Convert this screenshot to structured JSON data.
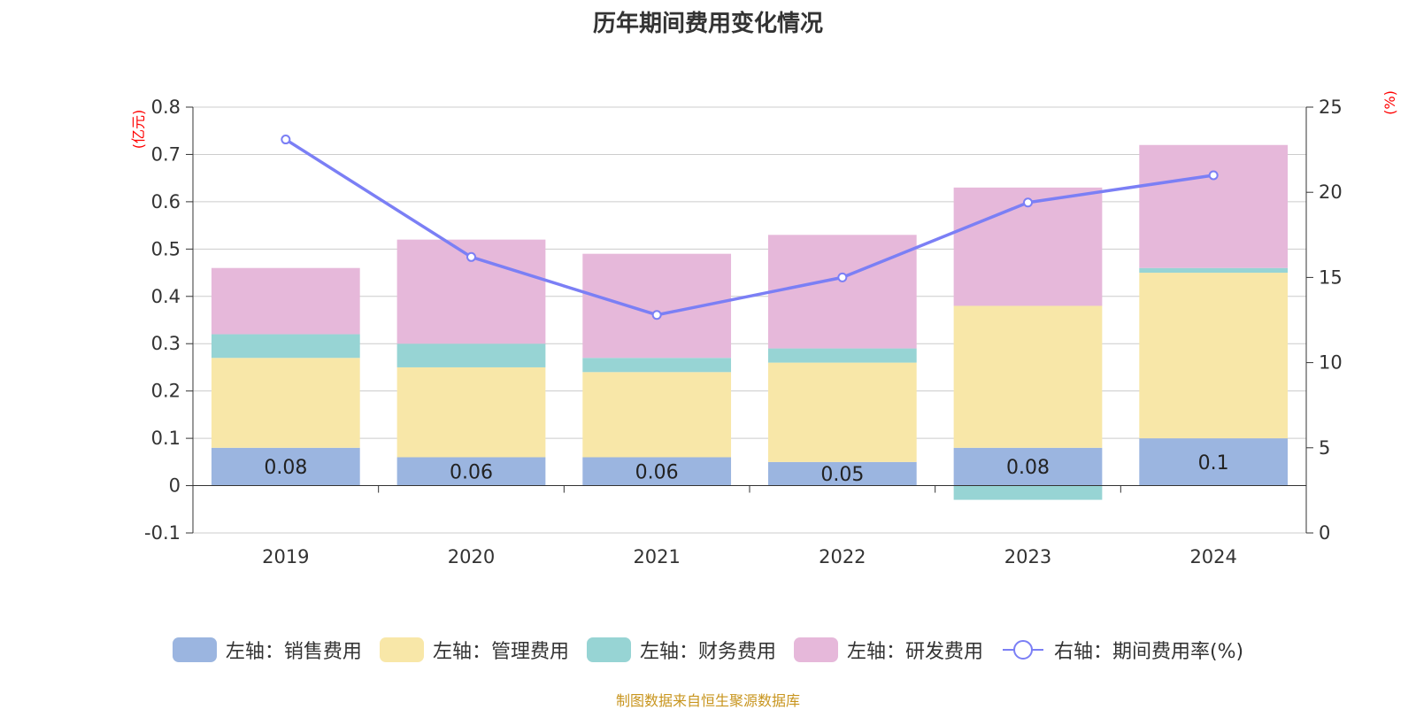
{
  "chart_data": {
    "type": "bar",
    "title": "历年期间费用变化情况",
    "categories": [
      "2019",
      "2020",
      "2021",
      "2022",
      "2023",
      "2024"
    ],
    "left_axis": {
      "unit": "(亿元)",
      "ylim": [
        -0.1,
        0.8
      ],
      "ticks": [
        "-0.1",
        "0",
        "0.1",
        "0.2",
        "0.3",
        "0.4",
        "0.5",
        "0.6",
        "0.7",
        "0.8"
      ]
    },
    "right_axis": {
      "unit": "(%)",
      "ylim": [
        0,
        25
      ],
      "ticks": [
        "0",
        "5",
        "10",
        "15",
        "20",
        "25"
      ]
    },
    "series": [
      {
        "name": "左轴：销售费用",
        "type": "bar",
        "axis": "left",
        "color": "#9bb5e0",
        "values": [
          0.08,
          0.06,
          0.06,
          0.05,
          0.08,
          0.1
        ],
        "labels": [
          "0.08",
          "0.06",
          "0.06",
          "0.05",
          "0.08",
          "0.1"
        ]
      },
      {
        "name": "左轴：管理费用",
        "type": "bar",
        "axis": "left",
        "color": "#f8e7a8",
        "values": [
          0.19,
          0.19,
          0.18,
          0.21,
          0.3,
          0.35
        ]
      },
      {
        "name": "左轴：财务费用",
        "type": "bar",
        "axis": "left",
        "color": "#97d4d4",
        "values": [
          0.05,
          0.05,
          0.03,
          0.03,
          -0.03,
          0.01
        ]
      },
      {
        "name": "左轴：研发费用",
        "type": "bar",
        "axis": "left",
        "color": "#e6b8da",
        "values": [
          0.14,
          0.22,
          0.22,
          0.24,
          0.25,
          0.26
        ]
      },
      {
        "name": "右轴：期间费用率(%)",
        "type": "line",
        "axis": "right",
        "color": "#7b7ff5",
        "values": [
          23.1,
          16.2,
          12.8,
          15.0,
          19.4,
          21.0
        ]
      }
    ],
    "grid": true,
    "legend_position": "bottom"
  },
  "source": "制图数据来自恒生聚源数据库"
}
